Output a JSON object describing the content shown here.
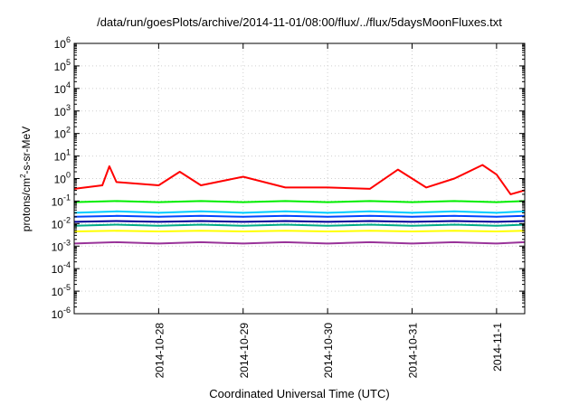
{
  "chart_data": {
    "type": "line",
    "title": "/data/run/goesPlots/archive/2014-11-01/08:00/flux/../flux/5daysMoonFluxes.txt",
    "xlabel": "Coordinated Universal Time (UTC)",
    "ylabel_parts": [
      "protons/cm",
      "2",
      "-s-sr-MeV"
    ],
    "yscale": "log",
    "ylim": [
      1e-06,
      1000000.0
    ],
    "xlim": [
      "2014-10-27T00:00",
      "2014-11-01T08:00"
    ],
    "grid": true,
    "legend": "none",
    "y_ticks": [
      {
        "value": 1e-06,
        "exp": "-6"
      },
      {
        "value": 1e-05,
        "exp": "-5"
      },
      {
        "value": 0.0001,
        "exp": "-4"
      },
      {
        "value": 0.001,
        "exp": "-3"
      },
      {
        "value": 0.01,
        "exp": "-2"
      },
      {
        "value": 0.1,
        "exp": "-1"
      },
      {
        "value": 1,
        "exp": "0"
      },
      {
        "value": 10,
        "exp": "1"
      },
      {
        "value": 100,
        "exp": "2"
      },
      {
        "value": 1000,
        "exp": "3"
      },
      {
        "value": 10000,
        "exp": "4"
      },
      {
        "value": 100000,
        "exp": "5"
      },
      {
        "value": 1000000,
        "exp": "6"
      }
    ],
    "y_tick_base": "10",
    "x_ticks": [
      {
        "label": "2014-10-28",
        "value": "2014-10-28T00:00"
      },
      {
        "label": "2014-10-29",
        "value": "2014-10-29T00:00"
      },
      {
        "label": "2014-10-30",
        "value": "2014-10-30T00:00"
      },
      {
        "label": "2014-10-31",
        "value": "2014-10-31T00:00"
      },
      {
        "label": "2014-11-1",
        "value": "2014-11-01T00:00"
      }
    ],
    "series": [
      {
        "color": "#ff0000",
        "x": [
          "2014-10-27T00:00",
          "2014-10-27T08:00",
          "2014-10-27T10:00",
          "2014-10-27T12:00",
          "2014-10-28T00:00",
          "2014-10-28T06:00",
          "2014-10-28T12:00",
          "2014-10-29T00:00",
          "2014-10-29T12:00",
          "2014-10-30T00:00",
          "2014-10-30T12:00",
          "2014-10-30T20:00",
          "2014-10-31T00:00",
          "2014-10-31T04:00",
          "2014-10-31T12:00",
          "2014-10-31T20:00",
          "2014-11-01T00:00",
          "2014-11-01T04:00",
          "2014-11-01T08:00"
        ],
        "y": [
          0.35,
          0.5,
          3.5,
          0.7,
          0.5,
          2.0,
          0.5,
          1.2,
          0.4,
          0.4,
          0.35,
          2.5,
          1.0,
          0.4,
          1.0,
          4.0,
          1.5,
          0.2,
          0.3
        ]
      },
      {
        "color": "#00ee00",
        "x": [
          "2014-10-27T00:00",
          "2014-10-27T12:00",
          "2014-10-28T00:00",
          "2014-10-28T12:00",
          "2014-10-29T00:00",
          "2014-10-29T12:00",
          "2014-10-30T00:00",
          "2014-10-30T12:00",
          "2014-10-31T00:00",
          "2014-10-31T12:00",
          "2014-11-01T00:00",
          "2014-11-01T08:00"
        ],
        "y": [
          0.09,
          0.1,
          0.09,
          0.1,
          0.09,
          0.1,
          0.09,
          0.1,
          0.09,
          0.1,
          0.09,
          0.1
        ]
      },
      {
        "color": "#00ccff",
        "x": [
          "2014-10-27T00:00",
          "2014-10-27T12:00",
          "2014-10-28T00:00",
          "2014-10-28T12:00",
          "2014-10-29T00:00",
          "2014-10-29T12:00",
          "2014-10-30T00:00",
          "2014-10-30T12:00",
          "2014-10-31T00:00",
          "2014-10-31T12:00",
          "2014-11-01T00:00",
          "2014-11-01T08:00"
        ],
        "y": [
          0.03,
          0.035,
          0.03,
          0.035,
          0.03,
          0.035,
          0.03,
          0.035,
          0.03,
          0.035,
          0.03,
          0.035
        ]
      },
      {
        "color": "#0044ff",
        "x": [
          "2014-10-27T00:00",
          "2014-10-27T12:00",
          "2014-10-28T00:00",
          "2014-10-28T12:00",
          "2014-10-29T00:00",
          "2014-10-29T12:00",
          "2014-10-30T00:00",
          "2014-10-30T12:00",
          "2014-10-31T00:00",
          "2014-10-31T12:00",
          "2014-11-01T00:00",
          "2014-11-01T08:00"
        ],
        "y": [
          0.02,
          0.022,
          0.02,
          0.022,
          0.02,
          0.022,
          0.02,
          0.022,
          0.02,
          0.022,
          0.02,
          0.022
        ]
      },
      {
        "color": "#000099",
        "x": [
          "2014-10-27T00:00",
          "2014-10-27T12:00",
          "2014-10-28T00:00",
          "2014-10-28T12:00",
          "2014-10-29T00:00",
          "2014-10-29T12:00",
          "2014-10-30T00:00",
          "2014-10-30T12:00",
          "2014-10-31T00:00",
          "2014-10-31T12:00",
          "2014-11-01T00:00",
          "2014-11-01T08:00"
        ],
        "y": [
          0.012,
          0.013,
          0.012,
          0.013,
          0.012,
          0.013,
          0.012,
          0.013,
          0.012,
          0.013,
          0.012,
          0.013
        ]
      },
      {
        "color": "#00aa88",
        "x": [
          "2014-10-27T00:00",
          "2014-10-27T12:00",
          "2014-10-28T00:00",
          "2014-10-28T12:00",
          "2014-10-29T00:00",
          "2014-10-29T12:00",
          "2014-10-30T00:00",
          "2014-10-30T12:00",
          "2014-10-31T00:00",
          "2014-10-31T12:00",
          "2014-11-01T00:00",
          "2014-11-01T08:00"
        ],
        "y": [
          0.008,
          0.009,
          0.008,
          0.009,
          0.008,
          0.009,
          0.008,
          0.009,
          0.008,
          0.009,
          0.008,
          0.009
        ]
      },
      {
        "color": "#ffff00",
        "x": [
          "2014-10-27T00:00",
          "2014-10-27T12:00",
          "2014-10-28T00:00",
          "2014-10-28T12:00",
          "2014-10-29T00:00",
          "2014-10-29T12:00",
          "2014-10-30T00:00",
          "2014-10-30T12:00",
          "2014-10-31T00:00",
          "2014-10-31T12:00",
          "2014-11-01T00:00",
          "2014-11-01T08:00"
        ],
        "y": [
          0.0045,
          0.0048,
          0.0045,
          0.0048,
          0.0045,
          0.0048,
          0.0045,
          0.0048,
          0.0045,
          0.0048,
          0.0045,
          0.0048
        ]
      },
      {
        "color": "#993399",
        "x": [
          "2014-10-27T00:00",
          "2014-10-27T12:00",
          "2014-10-28T00:00",
          "2014-10-28T12:00",
          "2014-10-29T00:00",
          "2014-10-29T12:00",
          "2014-10-30T00:00",
          "2014-10-30T12:00",
          "2014-10-31T00:00",
          "2014-10-31T12:00",
          "2014-11-01T00:00",
          "2014-11-01T08:00"
        ],
        "y": [
          0.0013,
          0.0015,
          0.0013,
          0.0015,
          0.0013,
          0.0015,
          0.0013,
          0.0015,
          0.0013,
          0.0015,
          0.0013,
          0.0015
        ]
      }
    ]
  }
}
